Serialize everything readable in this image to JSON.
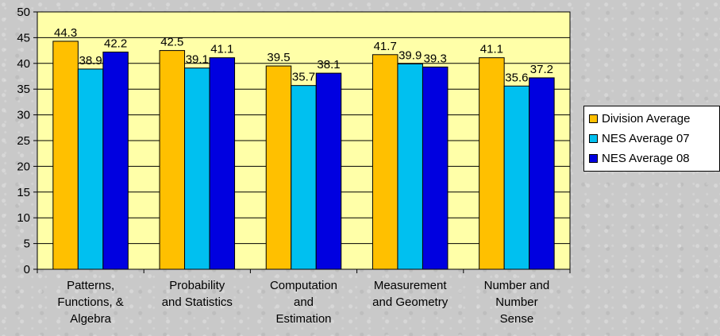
{
  "chart_data": {
    "type": "bar",
    "categories": [
      [
        "Patterns,",
        "Functions, &",
        "Algebra"
      ],
      [
        "Probability",
        "and Statistics"
      ],
      [
        "Computation",
        "and",
        "Estimation"
      ],
      [
        "Measurement",
        "and Geometry"
      ],
      [
        "Number and",
        "Number",
        "Sense"
      ]
    ],
    "series": [
      {
        "name": "Division Average",
        "color": "#ffc000",
        "values": [
          44.3,
          42.5,
          39.5,
          41.7,
          41.1
        ]
      },
      {
        "name": "NES Average 07",
        "color": "#00c0f0",
        "values": [
          38.9,
          39.1,
          35.7,
          39.9,
          35.6
        ]
      },
      {
        "name": "NES Average 08",
        "color": "#0000e0",
        "values": [
          42.2,
          41.1,
          38.1,
          39.3,
          37.2
        ]
      }
    ],
    "ylim": [
      0,
      50
    ],
    "ytick_step": 5,
    "grid": true,
    "plot_background": "#ffffa8",
    "legend_position": "right"
  }
}
